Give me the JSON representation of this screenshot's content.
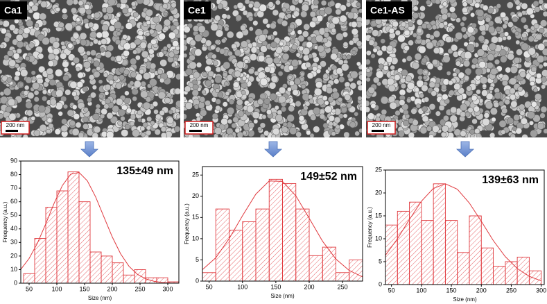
{
  "panels": [
    {
      "label": "Ca1",
      "scale_bar": "200 nm"
    },
    {
      "label": "Ce1",
      "scale_bar": "200 nm"
    },
    {
      "label": "Ce1-AS",
      "scale_bar": "200 nm"
    }
  ],
  "chart_data": [
    {
      "type": "histogram",
      "annotation": "135±49 nm",
      "xlabel": "Size (nm)",
      "ylabel": "Frequency (a.u.)",
      "color": "#e0393e",
      "bins": [
        40,
        60,
        80,
        100,
        120,
        140,
        160,
        180,
        200,
        220,
        240,
        260,
        280,
        300,
        320
      ],
      "values": [
        7,
        33,
        56,
        68,
        82,
        60,
        23,
        20,
        15,
        6,
        10,
        4,
        4,
        1
      ],
      "xlim": [
        35,
        320
      ],
      "xticks": [
        50,
        100,
        150,
        200,
        250,
        300
      ],
      "ylim": [
        0,
        90
      ],
      "yticks": [
        0,
        10,
        20,
        30,
        40,
        50,
        60,
        70,
        80,
        90
      ],
      "fit": {
        "x": [
          35,
          50,
          65,
          80,
          95,
          110,
          125,
          140,
          155,
          170,
          185,
          200,
          215,
          230,
          245,
          260,
          275,
          290,
          305,
          320
        ],
        "values": [
          10.2,
          18.2,
          29.5,
          43.7,
          58.8,
          72.0,
          80.3,
          81.6,
          75.4,
          63.5,
          48.7,
          34.0,
          21.6,
          12.5,
          6.6,
          3.2,
          1.4,
          0.5,
          0.2,
          0.1
        ]
      }
    },
    {
      "type": "histogram",
      "annotation": "149±52 nm",
      "xlabel": "Size (nm)",
      "ylabel": "Frequency (a.u.)",
      "color": "#e0393e",
      "bins": [
        40,
        60,
        80,
        100,
        120,
        140,
        160,
        180,
        200,
        220,
        240,
        260,
        280
      ],
      "values": [
        2,
        17,
        12,
        14,
        17,
        24,
        23,
        17,
        6,
        8,
        2,
        5
      ],
      "xlim": [
        40,
        280
      ],
      "xticks": [
        50,
        100,
        150,
        200,
        250
      ],
      "ylim": [
        0,
        27
      ],
      "yticks": [
        0,
        5,
        10,
        15,
        20,
        25
      ],
      "fit": {
        "x": [
          40,
          60,
          80,
          100,
          120,
          140,
          160,
          180,
          200,
          220,
          240,
          260,
          280
        ],
        "values": [
          2.7,
          5.5,
          10.0,
          15.4,
          20.5,
          23.6,
          23.5,
          20.1,
          14.8,
          9.4,
          5.2,
          2.5,
          1.0
        ]
      }
    },
    {
      "type": "histogram",
      "annotation": "139±63 nm",
      "xlabel": "Size (nm)",
      "ylabel": "Frequency (a.u.)",
      "color": "#e0393e",
      "bins": [
        40,
        60,
        80,
        100,
        120,
        140,
        160,
        180,
        200,
        220,
        240,
        260,
        280,
        300
      ],
      "values": [
        13,
        16,
        18,
        14,
        22,
        14,
        7,
        15,
        8,
        4,
        5,
        6,
        3
      ],
      "xlim": [
        40,
        305
      ],
      "xticks": [
        50,
        100,
        150,
        200,
        250,
        300
      ],
      "ylim": [
        0,
        25
      ],
      "yticks": [
        0,
        5,
        10,
        15,
        20,
        25
      ],
      "fit": {
        "x": [
          40,
          60,
          80,
          100,
          120,
          140,
          160,
          180,
          200,
          220,
          240,
          260,
          280,
          300
        ],
        "values": [
          6.4,
          10.0,
          14.2,
          18.2,
          21.0,
          22.0,
          20.8,
          17.8,
          13.8,
          9.6,
          6.1,
          3.5,
          1.8,
          0.8
        ]
      }
    }
  ]
}
